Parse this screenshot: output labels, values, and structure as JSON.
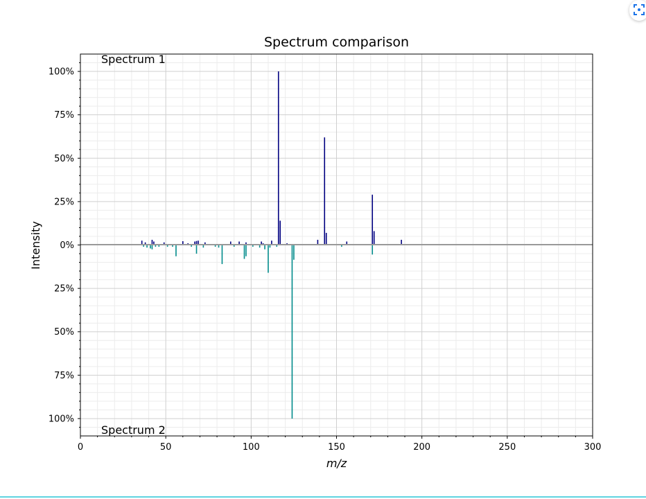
{
  "chart_data": {
    "type": "bar",
    "title": "Spectrum comparison",
    "xlabel": "m/z",
    "ylabel": "Intensity",
    "xlim": [
      0,
      300
    ],
    "ylim": [
      -110,
      110
    ],
    "x_ticks": [
      0,
      50,
      100,
      150,
      200,
      250,
      300
    ],
    "y_ticks": [
      {
        "value": 100,
        "label": "100%"
      },
      {
        "value": 75,
        "label": "75%"
      },
      {
        "value": 50,
        "label": "50%"
      },
      {
        "value": 25,
        "label": "25%"
      },
      {
        "value": 0,
        "label": "0%"
      },
      {
        "value": -25,
        "label": "25%"
      },
      {
        "value": -50,
        "label": "50%"
      },
      {
        "value": -75,
        "label": "75%"
      },
      {
        "value": -100,
        "label": "100%"
      }
    ],
    "grid": true,
    "series": [
      {
        "name": "Spectrum 1",
        "direction": "up",
        "color": "#000080",
        "peaks": [
          [
            36,
            2.5
          ],
          [
            38,
            1.5
          ],
          [
            42,
            3
          ],
          [
            43,
            2
          ],
          [
            49,
            1.5
          ],
          [
            60,
            2.2
          ],
          [
            63,
            1
          ],
          [
            67,
            2
          ],
          [
            68,
            2.3
          ],
          [
            69,
            2.5
          ],
          [
            73,
            1.5
          ],
          [
            88,
            2
          ],
          [
            93,
            2
          ],
          [
            97,
            1.5
          ],
          [
            106,
            2
          ],
          [
            107,
            1
          ],
          [
            112,
            2.5
          ],
          [
            116,
            100
          ],
          [
            117,
            14
          ],
          [
            121,
            1
          ],
          [
            139,
            3
          ],
          [
            143,
            62
          ],
          [
            144,
            7
          ],
          [
            156,
            2
          ],
          [
            171,
            29
          ],
          [
            172,
            8
          ],
          [
            188,
            3
          ]
        ]
      },
      {
        "name": "Spectrum 2",
        "direction": "down",
        "color": "#008b8b",
        "peaks": [
          [
            37,
            1
          ],
          [
            39,
            1.5
          ],
          [
            41,
            2
          ],
          [
            42,
            2.5
          ],
          [
            44,
            1
          ],
          [
            46,
            1
          ],
          [
            51,
            1
          ],
          [
            54,
            1
          ],
          [
            56,
            6.5
          ],
          [
            65,
            1
          ],
          [
            68,
            5
          ],
          [
            72,
            1.5
          ],
          [
            79,
            1
          ],
          [
            81,
            1.5
          ],
          [
            83,
            11
          ],
          [
            90,
            1
          ],
          [
            96,
            8
          ],
          [
            97,
            6.5
          ],
          [
            101,
            1
          ],
          [
            105,
            1.5
          ],
          [
            108,
            2.5
          ],
          [
            110,
            16
          ],
          [
            111,
            1.5
          ],
          [
            115,
            1
          ],
          [
            124,
            100
          ],
          [
            125,
            8.5
          ],
          [
            153,
            1
          ],
          [
            171,
            5.5
          ]
        ]
      }
    ]
  }
}
